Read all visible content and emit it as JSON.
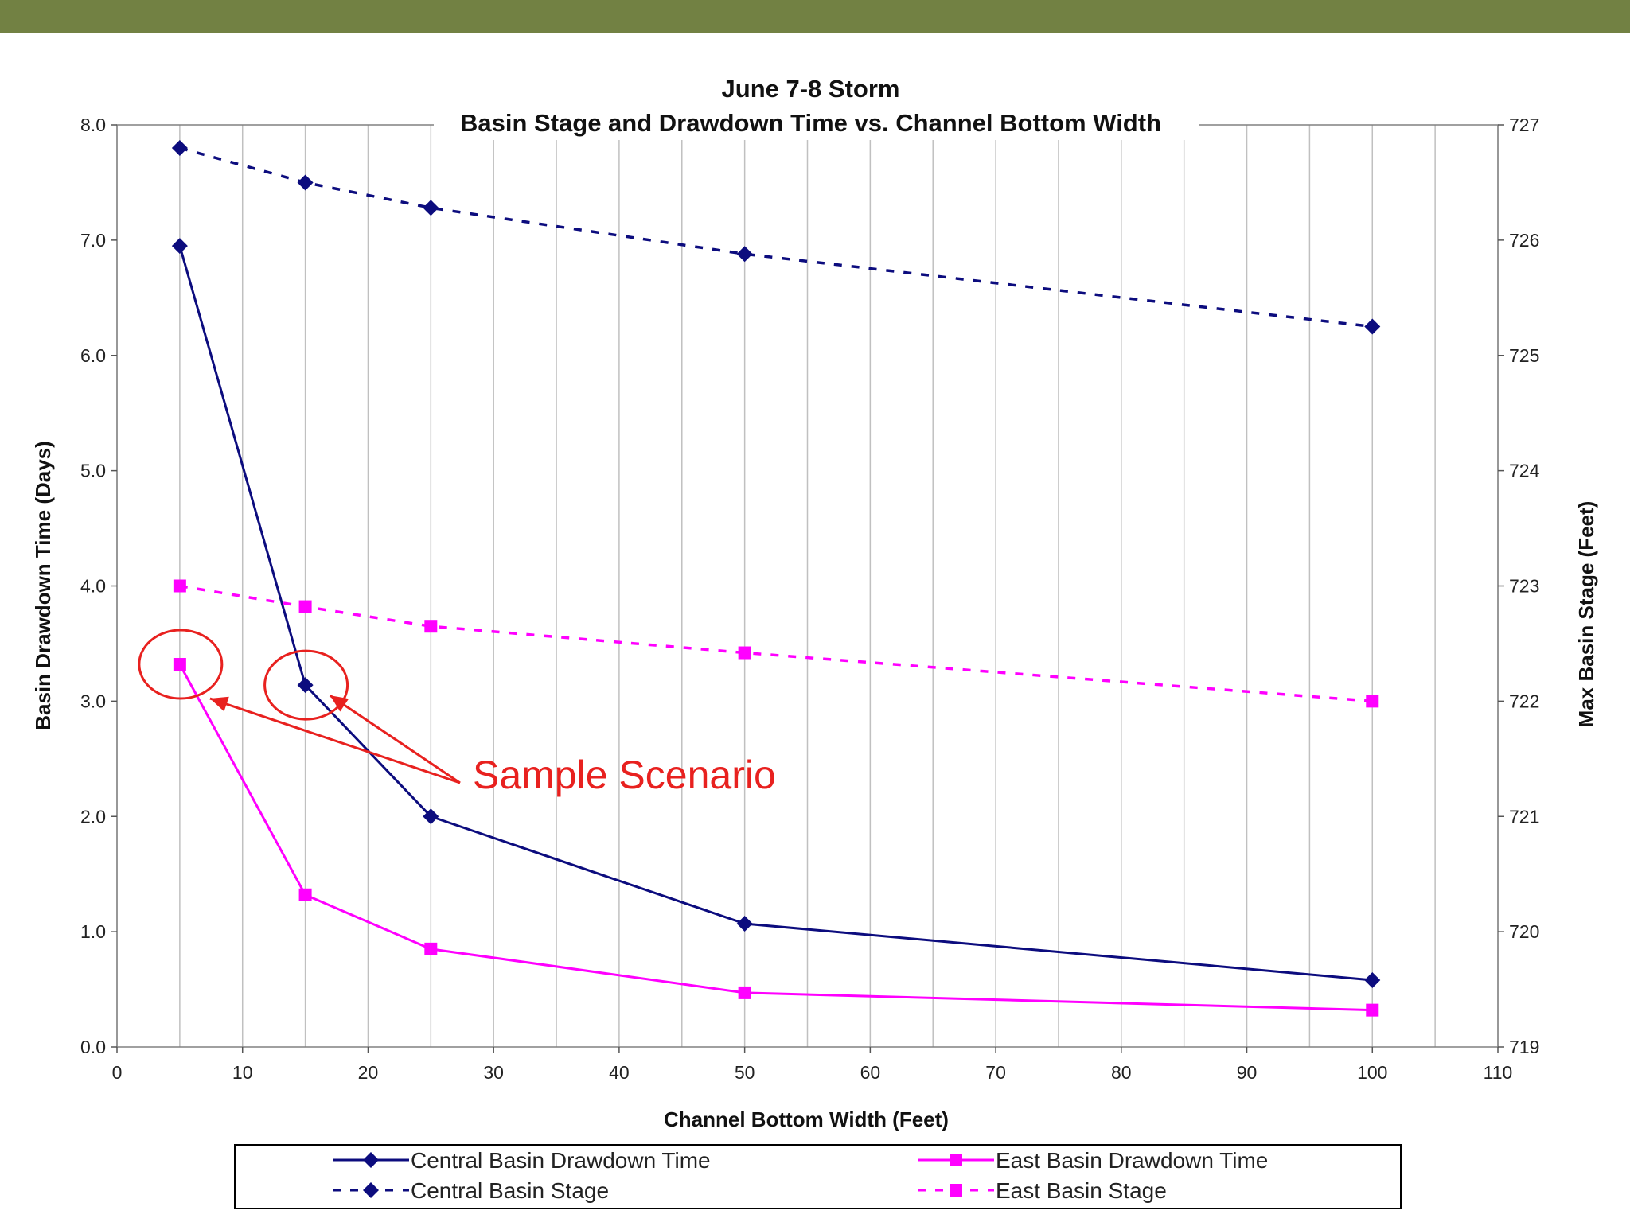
{
  "colors": {
    "band": "#728143",
    "central": "#0c0c7e",
    "east": "#ff00ff",
    "annotation": "#e8211f",
    "grid": "#c0c0c0"
  },
  "chart_data": {
    "type": "line",
    "title": "June 7-8 Storm",
    "subtitle": "Basin Stage and Drawdown Time vs. Channel Bottom Width",
    "xlabel": "Channel Bottom Width (Feet)",
    "ylabel": "Basin Drawdown Time (Days)",
    "y2label": "Max Basin Stage (Feet)",
    "xlim": [
      0,
      110
    ],
    "ylim": [
      0,
      8
    ],
    "y2lim": [
      719,
      727
    ],
    "xticks": [
      "0",
      "10",
      "20",
      "30",
      "40",
      "50",
      "60",
      "70",
      "80",
      "90",
      "100",
      "110"
    ],
    "yticks": [
      "0.0",
      "1.0",
      "2.0",
      "3.0",
      "4.0",
      "5.0",
      "6.0",
      "7.0",
      "8.0"
    ],
    "y2ticks": [
      "719",
      "720",
      "721",
      "722",
      "723",
      "724",
      "725",
      "726",
      "727"
    ],
    "grid": true,
    "legend": "bottom",
    "x": [
      5,
      15,
      25,
      50,
      100
    ],
    "series": [
      {
        "name": "Central Basin Drawdown Time",
        "axis": "left",
        "marker": "diamond",
        "dash": false,
        "color": "#0c0c7e",
        "values": [
          6.95,
          3.14,
          2.0,
          1.07,
          0.58
        ]
      },
      {
        "name": "East Basin Drawdown Time",
        "axis": "left",
        "marker": "square",
        "dash": false,
        "color": "#ff00ff",
        "values": [
          3.32,
          1.32,
          0.85,
          0.47,
          0.32
        ]
      },
      {
        "name": "Central Basin Stage",
        "axis": "right",
        "marker": "diamond",
        "dash": true,
        "color": "#0c0c7e",
        "values": [
          726.8,
          726.5,
          726.28,
          725.88,
          725.25
        ]
      },
      {
        "name": "East Basin Stage",
        "axis": "right",
        "marker": "square",
        "dash": true,
        "color": "#ff00ff",
        "values": [
          723.0,
          722.82,
          722.65,
          722.42,
          722.0
        ]
      }
    ],
    "annotation": {
      "text": "Sample Scenario",
      "targets": [
        [
          5,
          3.32
        ],
        [
          15,
          3.14
        ]
      ]
    }
  }
}
